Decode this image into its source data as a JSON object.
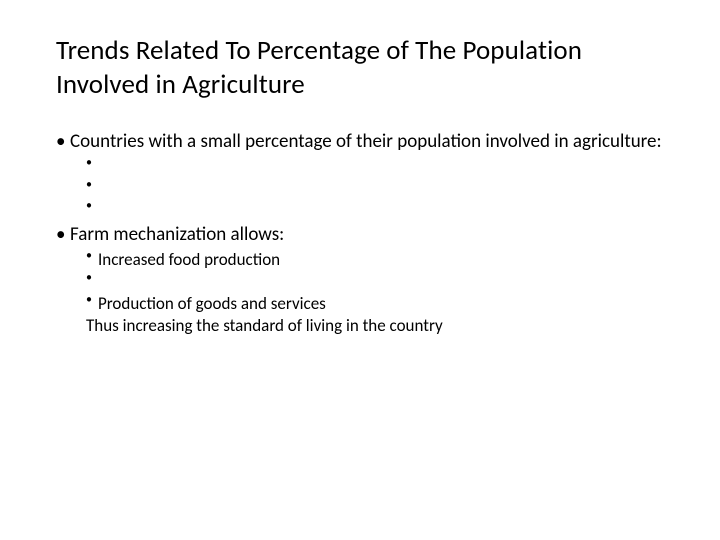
{
  "slide": {
    "title": "Trends Related To Percentage of The Population Involved in Agriculture",
    "title_fontsize": 27,
    "title_color": "#000000",
    "body_fontsize_l1": 19,
    "body_fontsize_l2": 17,
    "background_color": "#ffffff",
    "bullets": [
      {
        "level": 1,
        "text": "Countries with a small percentage of their population involved in agriculture:",
        "children": [
          {
            "level": 2,
            "text": ""
          },
          {
            "level": 2,
            "text": ""
          },
          {
            "level": 2,
            "text": ""
          }
        ]
      },
      {
        "level": 1,
        "text": "Farm mechanization allows:",
        "children": [
          {
            "level": 2,
            "text": "Increased food production"
          },
          {
            "level": 2,
            "text": ""
          },
          {
            "level": 2,
            "text": "Production of goods and services"
          },
          {
            "level": 2,
            "plain": true,
            "text": "Thus increasing the standard of living in the country"
          }
        ]
      }
    ]
  }
}
